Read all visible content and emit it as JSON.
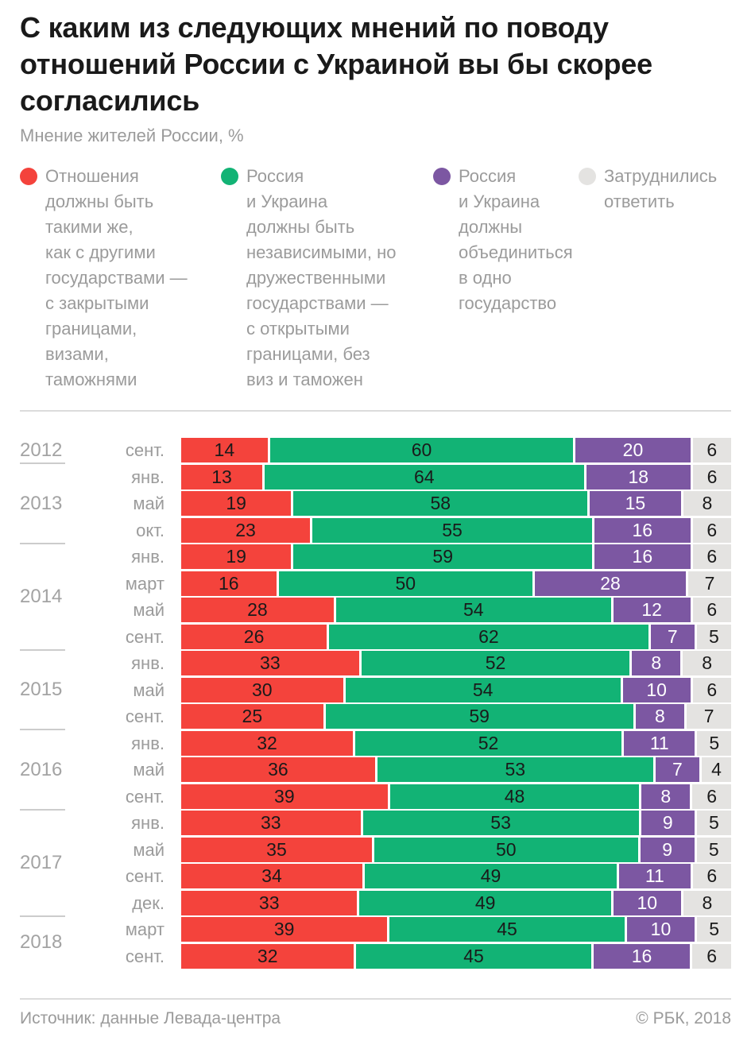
{
  "title_lines": [
    "С каким из следующих мнений по поводу",
    "отношений России с Украиной вы бы скорее",
    "согласились"
  ],
  "subtitle": "Мнение жителей России, %",
  "colors": {
    "red": "#F4433C",
    "green": "#12B375",
    "purple": "#7C57A2",
    "gray": "#E4E3E1",
    "dark_text": "#1A1A1A",
    "muted_text": "#9B9B9B"
  },
  "legend": {
    "items": [
      {
        "key": "same-as-other-states",
        "color": "#F4433C",
        "lines": [
          "Отношения",
          "должны быть",
          "такими же,",
          "как с другими",
          "государствами —",
          "с закрытыми",
          "границами,",
          "визами,",
          "таможнями"
        ]
      },
      {
        "key": "independent-friendly",
        "color": "#12B375",
        "lines": [
          "Россия",
          "и Украина",
          "должны быть",
          "независимыми, но",
          "дружественными",
          "государствами —",
          "с открытыми",
          "границами, без",
          "виз и таможен"
        ]
      },
      {
        "key": "unite-one-state",
        "color": "#7C57A2",
        "lines": [
          "Россия",
          "и Украина",
          "должны",
          "объединиться",
          "в одно",
          "государство"
        ]
      },
      {
        "key": "hard-to-answer",
        "color": "#E4E3E1",
        "lines": [
          "Затруднились",
          "ответить"
        ]
      }
    ]
  },
  "chart_data": {
    "type": "bar",
    "stacked": true,
    "orientation": "horizontal",
    "unit": "%",
    "series": [
      {
        "key": "same-as-other-states",
        "label": "Отношения должны быть такими же, как с другими государствами — с закрытыми границами, визами, таможнями"
      },
      {
        "key": "independent-friendly",
        "label": "Россия и Украина должны быть независимыми, но дружественными государствами — с открытыми границами, без виз и таможен"
      },
      {
        "key": "unite-one-state",
        "label": "Россия и Украина должны объединиться в одно государство"
      },
      {
        "key": "hard-to-answer",
        "label": "Затруднились ответить"
      }
    ],
    "segment_colors": [
      "#F4433C",
      "#12B375",
      "#7C57A2",
      "#E4E3E1"
    ],
    "value_colors": [
      "#1A1A1A",
      "#1A1A1A",
      "#FFFFFF",
      "#1A1A1A"
    ],
    "rows": [
      {
        "year": "2012",
        "month": "сент.",
        "values": [
          14,
          60,
          20,
          6
        ]
      },
      {
        "year": "2013",
        "month": "янв.",
        "values": [
          13,
          64,
          18,
          6
        ]
      },
      {
        "year": "2013",
        "month": "май",
        "values": [
          19,
          58,
          15,
          8
        ]
      },
      {
        "year": "2013",
        "month": "окт.",
        "values": [
          23,
          55,
          16,
          6
        ]
      },
      {
        "year": "2014",
        "month": "янв.",
        "values": [
          19,
          59,
          16,
          6
        ]
      },
      {
        "year": "2014",
        "month": "март",
        "values": [
          16,
          50,
          28,
          7
        ]
      },
      {
        "year": "2014",
        "month": "май",
        "values": [
          28,
          54,
          12,
          6
        ]
      },
      {
        "year": "2014",
        "month": "сент.",
        "values": [
          26,
          62,
          7,
          5
        ]
      },
      {
        "year": "2015",
        "month": "янв.",
        "values": [
          33,
          52,
          8,
          8
        ]
      },
      {
        "year": "2015",
        "month": "май",
        "values": [
          30,
          54,
          10,
          6
        ]
      },
      {
        "year": "2015",
        "month": "сент.",
        "values": [
          25,
          59,
          8,
          7
        ]
      },
      {
        "year": "2016",
        "month": "янв.",
        "values": [
          32,
          52,
          11,
          5
        ]
      },
      {
        "year": "2016",
        "month": "май",
        "values": [
          36,
          53,
          7,
          4
        ]
      },
      {
        "year": "2016",
        "month": "сент.",
        "values": [
          39,
          48,
          8,
          6
        ]
      },
      {
        "year": "2017",
        "month": "янв.",
        "values": [
          33,
          53,
          9,
          5
        ]
      },
      {
        "year": "2017",
        "month": "май",
        "values": [
          35,
          50,
          9,
          5
        ]
      },
      {
        "year": "2017",
        "month": "сент.",
        "values": [
          34,
          49,
          11,
          6
        ]
      },
      {
        "year": "2017",
        "month": "дек.",
        "values": [
          33,
          49,
          10,
          8
        ]
      },
      {
        "year": "2018",
        "month": "март",
        "values": [
          39,
          45,
          10,
          5
        ]
      },
      {
        "year": "2018",
        "month": "сент.",
        "values": [
          32,
          45,
          16,
          6
        ]
      }
    ],
    "year_groups": [
      {
        "label": "2012",
        "start": 0,
        "count": 1
      },
      {
        "label": "2013",
        "start": 1,
        "count": 3
      },
      {
        "label": "2014",
        "start": 4,
        "count": 4
      },
      {
        "label": "2015",
        "start": 8,
        "count": 3
      },
      {
        "label": "2016",
        "start": 11,
        "count": 3
      },
      {
        "label": "2017",
        "start": 14,
        "count": 4
      },
      {
        "label": "2018",
        "start": 18,
        "count": 2
      }
    ]
  },
  "footer": {
    "source": "Источник: данные Левада-центра",
    "copyright": "© РБК, 2018"
  }
}
